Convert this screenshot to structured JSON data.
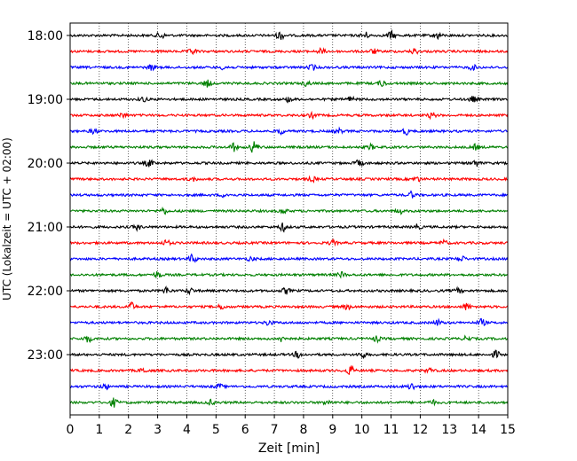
{
  "chart_data": {
    "type": "line",
    "title": "",
    "xlabel": "Zeit  [min]",
    "ylabel": "UTC (Lokalzeit = UTC + 02:00)",
    "xlim": [
      0,
      15
    ],
    "x_ticks": [
      0,
      1,
      2,
      3,
      4,
      5,
      6,
      7,
      8,
      9,
      10,
      11,
      12,
      13,
      14,
      15
    ],
    "y_tick_labels": [
      "18:00",
      "19:00",
      "20:00",
      "21:00",
      "22:00",
      "23:00"
    ],
    "grid": "vertical dotted",
    "trace_colors": [
      "#000000",
      "#ff0000",
      "#0000ff",
      "#008000"
    ],
    "trace_start_times": [
      "18:00",
      "18:15",
      "18:30",
      "18:45",
      "19:00",
      "19:15",
      "19:30",
      "19:45",
      "20:00",
      "20:15",
      "20:30",
      "20:45",
      "21:00",
      "21:15",
      "21:30",
      "21:45",
      "22:00",
      "22:15",
      "22:30",
      "22:45",
      "23:00",
      "23:15",
      "23:30",
      "23:45"
    ],
    "trace_duration_min": 15,
    "bursts": [
      [
        [
          3.1,
          0.9
        ],
        [
          7.2,
          1.1
        ],
        [
          10.1,
          0.9
        ],
        [
          11,
          1.0
        ],
        [
          12.6,
          0.8
        ]
      ],
      [
        [
          4.2,
          0.7
        ],
        [
          8.6,
          0.7
        ],
        [
          10.4,
          0.6
        ],
        [
          11.8,
          0.7
        ]
      ],
      [
        [
          2.8,
          0.7
        ],
        [
          5.3,
          0.6
        ],
        [
          8.3,
          0.7
        ],
        [
          13.8,
          0.6
        ]
      ],
      [
        [
          4.7,
          0.9
        ],
        [
          8.1,
          0.6
        ],
        [
          10.7,
          0.8
        ]
      ],
      [
        [
          2.5,
          0.6
        ],
        [
          7.5,
          0.6
        ],
        [
          9.6,
          0.6
        ],
        [
          13.8,
          0.7
        ]
      ],
      [
        [
          1.8,
          0.6
        ],
        [
          8.3,
          0.6
        ],
        [
          12.4,
          0.7
        ]
      ],
      [
        [
          0.8,
          0.6
        ],
        [
          7.2,
          0.7
        ],
        [
          9.2,
          0.6
        ],
        [
          11.5,
          0.8
        ]
      ],
      [
        [
          5.6,
          1.0
        ],
        [
          6.3,
          1.6
        ],
        [
          10.3,
          0.6
        ],
        [
          13.9,
          0.7
        ]
      ],
      [
        [
          2.7,
          0.9
        ],
        [
          9.9,
          0.8
        ],
        [
          13.9,
          0.8
        ]
      ],
      [
        [
          4.2,
          0.5
        ],
        [
          8.3,
          0.6
        ],
        [
          11.9,
          0.6
        ]
      ],
      [
        [
          5.3,
          0.5
        ],
        [
          11.7,
          0.8
        ]
      ],
      [
        [
          3.2,
          0.8
        ],
        [
          7.3,
          0.6
        ],
        [
          11.3,
          0.6
        ]
      ],
      [
        [
          2.3,
          0.7
        ],
        [
          7.3,
          1.0
        ],
        [
          11.9,
          0.6
        ]
      ],
      [
        [
          3.3,
          0.7
        ],
        [
          9.0,
          0.6
        ],
        [
          12.8,
          0.6
        ]
      ],
      [
        [
          4.2,
          1.1
        ],
        [
          6.2,
          0.5
        ],
        [
          13.4,
          0.8
        ]
      ],
      [
        [
          3.0,
          0.8
        ],
        [
          9.3,
          0.7
        ]
      ],
      [
        [
          3.3,
          0.9
        ],
        [
          4.1,
          0.7
        ],
        [
          7.4,
          0.8
        ],
        [
          13.3,
          0.6
        ]
      ],
      [
        [
          2.1,
          1.0
        ],
        [
          5.2,
          0.6
        ],
        [
          9.5,
          0.6
        ],
        [
          13.6,
          0.9
        ]
      ],
      [
        [
          6.8,
          0.7
        ],
        [
          12.6,
          0.7
        ],
        [
          14.1,
          0.9
        ]
      ],
      [
        [
          0.6,
          0.9
        ],
        [
          7.3,
          1.0
        ],
        [
          10.5,
          0.7
        ],
        [
          13.6,
          0.6
        ]
      ],
      [
        [
          7.8,
          0.8
        ],
        [
          10.0,
          0.8
        ],
        [
          14.6,
          0.9
        ]
      ],
      [
        [
          2.5,
          0.6
        ],
        [
          9.6,
          1.2
        ],
        [
          12.3,
          0.6
        ]
      ],
      [
        [
          1.2,
          0.7
        ],
        [
          5.1,
          0.6
        ],
        [
          11.7,
          0.9
        ]
      ],
      [
        [
          1.5,
          1.1
        ],
        [
          4.8,
          0.6
        ],
        [
          8.8,
          0.6
        ],
        [
          12.4,
          0.6
        ]
      ]
    ]
  }
}
